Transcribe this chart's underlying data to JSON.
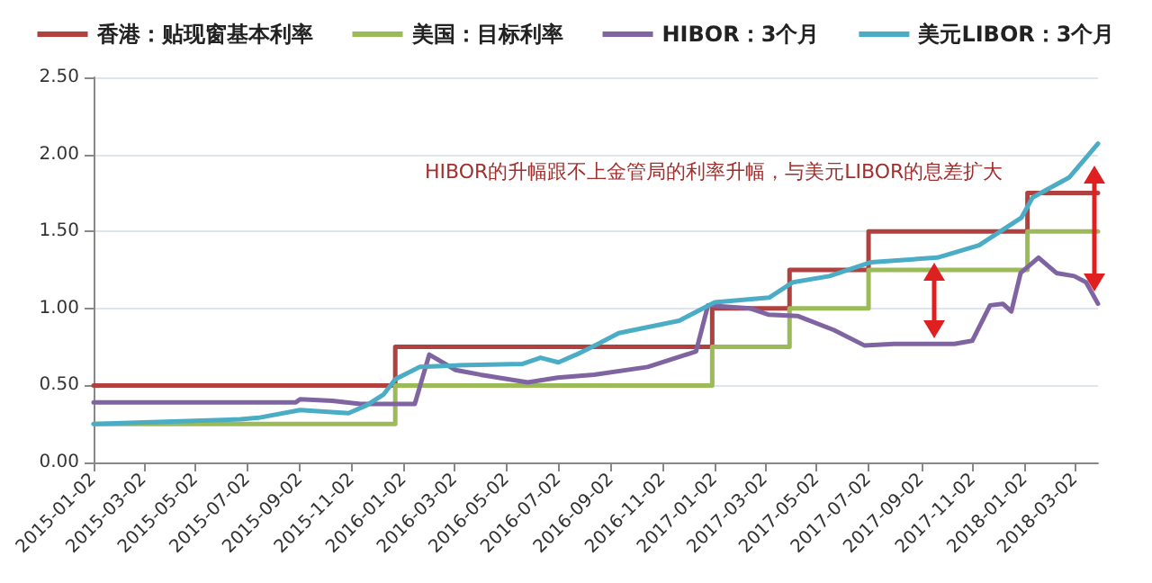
{
  "chart_data": {
    "type": "line",
    "annotations": [
      "HIBOR的升幅跟不上金管局的利率升幅，与美元LIBOR的息差扩大"
    ],
    "series": [
      {
        "name": "香港：贴现窗基本利率",
        "type": "step",
        "color": "#b0413e",
        "x": [
          "2015-01-02",
          "2015-12-23",
          "2016-12-30",
          "2017-03-31",
          "2017-07-02",
          "2018-01-05",
          "2018-03-29"
        ],
        "values": [
          0.5,
          0.75,
          1.0,
          1.25,
          1.5,
          1.75,
          1.75
        ]
      },
      {
        "name": "美国：目标利率",
        "type": "step",
        "color": "#9bbb59",
        "x": [
          "2015-01-02",
          "2015-12-23",
          "2016-12-30",
          "2017-03-31",
          "2017-07-02",
          "2018-01-05",
          "2018-03-29"
        ],
        "values": [
          0.25,
          0.5,
          0.75,
          1.0,
          1.25,
          1.5,
          1.5
        ]
      },
      {
        "name": "HIBOR：3个月",
        "color": "#8064a2",
        "x": [
          "2015-01-02",
          "2015-08-28",
          "2015-09-02",
          "2015-10-10",
          "2015-11-12",
          "2016-01-15",
          "2016-02-01",
          "2016-03-03",
          "2016-04-01",
          "2016-05-27",
          "2016-07-01",
          "2016-08-13",
          "2016-10-15",
          "2016-12-11",
          "2016-12-25",
          "2017-02-13",
          "2017-03-06",
          "2017-04-10",
          "2017-05-22",
          "2017-06-27",
          "2017-08-01",
          "2017-10-11",
          "2017-11-01",
          "2017-11-22",
          "2017-12-07",
          "2017-12-17",
          "2017-12-28",
          "2018-01-18",
          "2018-02-08",
          "2018-03-01",
          "2018-03-15",
          "2018-03-29"
        ],
        "values": [
          0.39,
          0.39,
          0.41,
          0.4,
          0.38,
          0.38,
          0.7,
          0.6,
          0.57,
          0.52,
          0.55,
          0.57,
          0.62,
          0.72,
          1.02,
          1.0,
          0.96,
          0.95,
          0.86,
          0.76,
          0.77,
          0.77,
          0.79,
          1.02,
          1.03,
          0.98,
          1.23,
          1.33,
          1.23,
          1.21,
          1.17,
          1.03
        ]
      },
      {
        "name": "美元LIBOR：3个月",
        "color": "#4bacc6",
        "x": [
          "2015-01-02",
          "2015-06-24",
          "2015-07-15",
          "2015-09-02",
          "2015-10-29",
          "2015-11-19",
          "2015-12-09",
          "2015-12-23",
          "2016-01-21",
          "2016-03-03",
          "2016-05-21",
          "2016-06-11",
          "2016-07-02",
          "2016-07-23",
          "2016-08-14",
          "2016-09-11",
          "2016-11-21",
          "2017-01-02",
          "2017-03-07",
          "2017-04-04",
          "2017-05-17",
          "2017-07-05",
          "2017-09-21",
          "2017-11-09",
          "2017-12-29",
          "2018-01-11",
          "2018-02-23",
          "2018-03-29"
        ],
        "values": [
          0.25,
          0.28,
          0.29,
          0.34,
          0.32,
          0.37,
          0.44,
          0.54,
          0.62,
          0.63,
          0.64,
          0.68,
          0.65,
          0.7,
          0.76,
          0.84,
          0.92,
          1.04,
          1.07,
          1.17,
          1.21,
          1.3,
          1.33,
          1.41,
          1.59,
          1.72,
          1.85,
          2.07
        ]
      }
    ],
    "xlim": [
      "2015-01-02",
      "2018-03-29"
    ],
    "xticks": [
      "2015-01-02",
      "2015-03-02",
      "2015-05-02",
      "2015-07-02",
      "2015-09-02",
      "2015-11-02",
      "2016-01-02",
      "2016-03-02",
      "2016-05-02",
      "2016-07-02",
      "2016-09-02",
      "2016-11-02",
      "2017-01-02",
      "2017-03-02",
      "2017-05-02",
      "2017-07-02",
      "2017-09-02",
      "2017-11-02",
      "2018-01-02",
      "2018-03-02"
    ],
    "ylim": [
      0,
      2.5
    ],
    "yticks": [
      {
        "value": 0,
        "label": "0.00"
      },
      {
        "value": 0.5,
        "label": "0.50"
      },
      {
        "value": 1,
        "label": "1.00"
      },
      {
        "value": 1.5,
        "label": "1.50"
      },
      {
        "value": 2,
        "label": "2.00"
      },
      {
        "value": 2.5,
        "label": "2.50"
      }
    ],
    "grid": "y",
    "legend": "top",
    "marker": "none",
    "line_style": "solid"
  }
}
